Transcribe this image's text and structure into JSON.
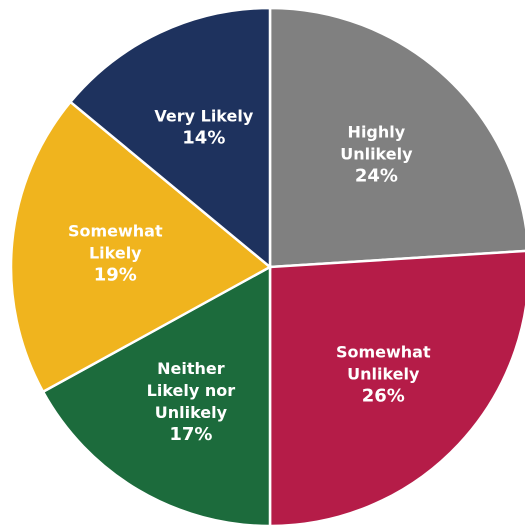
{
  "chart_data": {
    "type": "pie",
    "title": "",
    "slices": [
      {
        "label_lines": [
          "Highly",
          "Unlikely"
        ],
        "value_label": "24%",
        "value": 24,
        "color": "#808080"
      },
      {
        "label_lines": [
          "Somewhat",
          "Unlikely"
        ],
        "value_label": "26%",
        "value": 26,
        "color": "#b51c48"
      },
      {
        "label_lines": [
          "Neither",
          "Likely nor",
          "Unlikely"
        ],
        "value_label": "17%",
        "value": 17,
        "color": "#1c6b3c"
      },
      {
        "label_lines": [
          "Somewhat",
          "Likely"
        ],
        "value_label": "19%",
        "value": 19,
        "color": "#f0b41e"
      },
      {
        "label_lines": [
          "Very Likely"
        ],
        "value_label": "14%",
        "value": 14,
        "color": "#1e325e"
      }
    ],
    "start_angle_deg": 0,
    "direction": "clockwise",
    "legend": "none"
  }
}
